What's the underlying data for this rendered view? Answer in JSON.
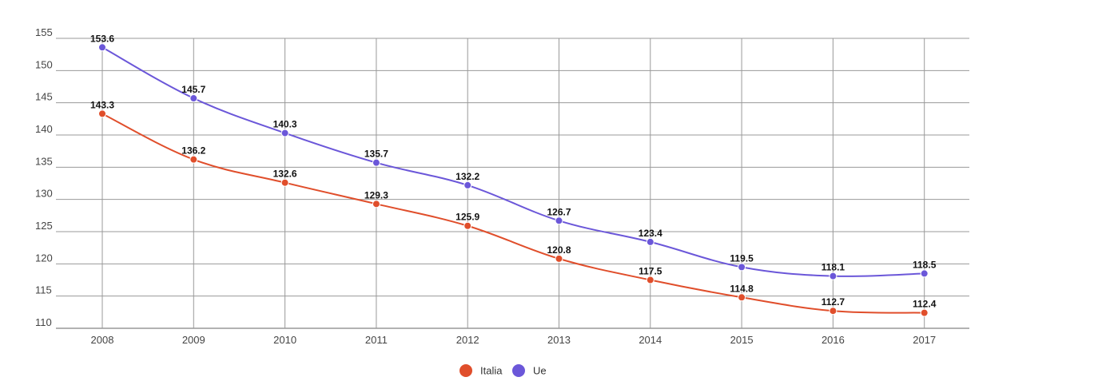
{
  "chart_data": {
    "type": "line",
    "title": "",
    "xlabel": "",
    "ylabel": "",
    "categories": [
      "2008",
      "2009",
      "2010",
      "2011",
      "2012",
      "2013",
      "2014",
      "2015",
      "2016",
      "2017"
    ],
    "ylim": [
      110,
      155
    ],
    "yticks": [
      "110",
      "115",
      "120",
      "125",
      "130",
      "135",
      "140",
      "145",
      "150",
      "155"
    ],
    "grid": true,
    "legend_position": "bottom-center",
    "series": [
      {
        "name": "Italia",
        "color": "#e04e2b",
        "values": [
          143.3,
          136.2,
          132.6,
          129.3,
          125.9,
          120.8,
          117.5,
          114.8,
          112.7,
          112.4
        ],
        "labels": [
          "143.3",
          "136.2",
          "132.6",
          "129.3",
          "125.9",
          "120.8",
          "117.5",
          "114.8",
          "112.7",
          "112.4"
        ]
      },
      {
        "name": "Ue",
        "color": "#6b57d9",
        "values": [
          153.6,
          145.7,
          140.3,
          135.7,
          132.2,
          126.7,
          123.4,
          119.5,
          118.1,
          118.5
        ],
        "labels": [
          "153.6",
          "145.7",
          "140.3",
          "135.7",
          "132.2",
          "126.7",
          "123.4",
          "119.5",
          "118.1",
          "118.5"
        ]
      }
    ]
  }
}
